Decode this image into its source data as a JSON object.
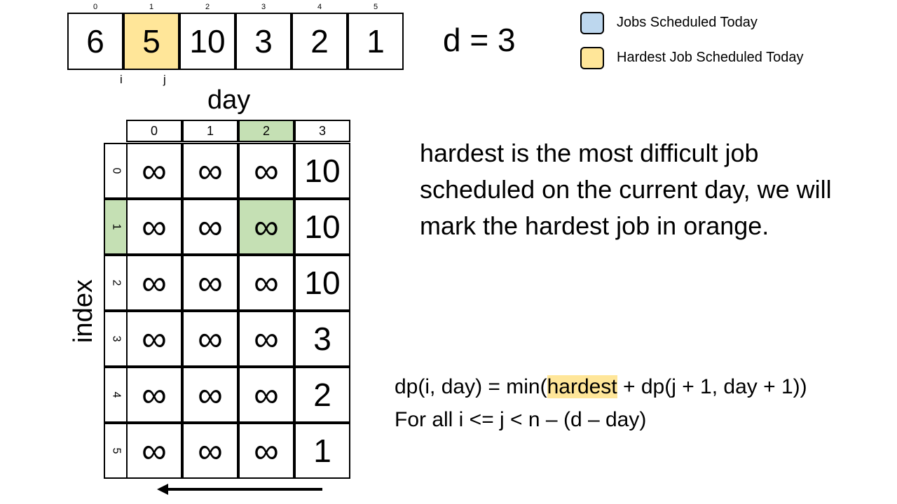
{
  "array": {
    "indices": [
      "0",
      "1",
      "2",
      "3",
      "4",
      "5"
    ],
    "values": [
      "6",
      "5",
      "10",
      "3",
      "2",
      "1"
    ],
    "highlight_index": 1,
    "pointers": [
      {
        "label": "i",
        "index": 1
      },
      {
        "label": "j",
        "index": 1
      }
    ]
  },
  "d_label": "d = 3",
  "legend": [
    {
      "color": "#bdd7ee",
      "label": "Jobs Scheduled Today"
    },
    {
      "color": "#ffe699",
      "label": "Hardest Job Scheduled Today"
    }
  ],
  "table": {
    "col_axis": "day",
    "row_axis": "index",
    "col_headers": [
      "0",
      "1",
      "2",
      "3"
    ],
    "row_headers": [
      "0",
      "1",
      "2",
      "3",
      "4",
      "5"
    ],
    "cells": [
      [
        "∞",
        "∞",
        "∞",
        "10"
      ],
      [
        "∞",
        "∞",
        "∞",
        "10"
      ],
      [
        "∞",
        "∞",
        "∞",
        "10"
      ],
      [
        "∞",
        "∞",
        "∞",
        "3"
      ],
      [
        "∞",
        "∞",
        "∞",
        "2"
      ],
      [
        "∞",
        "∞",
        "∞",
        "1"
      ]
    ],
    "selected_row": 1,
    "selected_col": 2,
    "highlight_color": "#c5e0b4"
  },
  "description": "hardest is the most difficult job scheduled on the current day, we will mark the hardest job in orange.",
  "formula": {
    "line1_prefix": "dp(i, day) = min(",
    "line1_highlight": "hardest",
    "line1_suffix": " + dp(j + 1, day + 1))",
    "line2": "For all i <= j < n – (d – day)"
  }
}
